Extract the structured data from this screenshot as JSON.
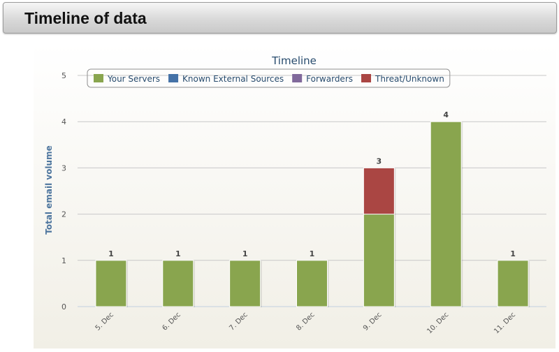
{
  "header": {
    "title": "Timeline of data"
  },
  "chart_data": {
    "type": "bar",
    "stacked": true,
    "title": "Timeline",
    "ylabel": "Total email volume",
    "xlabel": "",
    "ylim": [
      0,
      5
    ],
    "yticks": [
      0,
      1,
      2,
      3,
      4,
      5
    ],
    "categories": [
      "5. Dec",
      "6. Dec",
      "7. Dec",
      "8. Dec",
      "9. Dec",
      "10. Dec",
      "11. Dec"
    ],
    "series": [
      {
        "name": "Your Servers",
        "color": "#89a54e",
        "values": [
          1,
          1,
          1,
          1,
          2,
          4,
          1
        ]
      },
      {
        "name": "Known External Sources",
        "color": "#4572a7",
        "values": [
          0,
          0,
          0,
          0,
          0,
          0,
          0
        ]
      },
      {
        "name": "Forwarders",
        "color": "#80699b",
        "values": [
          0,
          0,
          0,
          0,
          0,
          0,
          0
        ]
      },
      {
        "name": "Threat/Unknown",
        "color": "#aa4643",
        "values": [
          0,
          0,
          0,
          0,
          1,
          0,
          0
        ]
      }
    ],
    "totals": [
      1,
      1,
      1,
      1,
      3,
      4,
      1
    ],
    "legend_position": "top",
    "grid": true
  }
}
